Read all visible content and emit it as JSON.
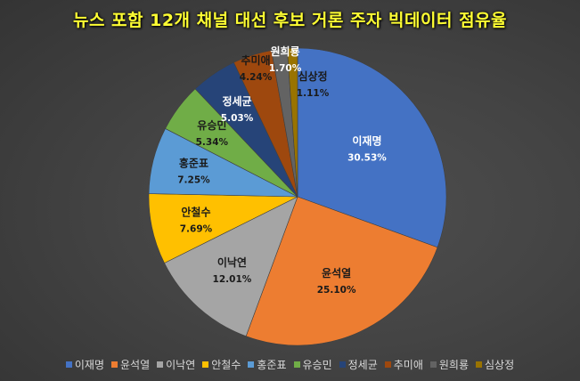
{
  "chart_data": {
    "type": "pie",
    "title": "뉴스 포함 12개 채널 대선 후보 거론 주자 빅데이터 점유율",
    "categories": [
      "이재명",
      "윤석열",
      "이낙연",
      "안철수",
      "홍준표",
      "유승민",
      "정세균",
      "추미애",
      "원희룡",
      "심상정"
    ],
    "values": [
      30.53,
      25.1,
      12.01,
      7.69,
      7.25,
      5.34,
      5.03,
      4.24,
      1.7,
      1.11
    ],
    "value_labels": [
      "30.53%",
      "25.10%",
      "12.01%",
      "7.69%",
      "7.25%",
      "5.34%",
      "5.03%",
      "4.24%",
      "1.70%",
      "1.11%"
    ],
    "colors": [
      "#4472c4",
      "#ed7d31",
      "#a5a5a5",
      "#ffc000",
      "#5b9bd5",
      "#70ad47",
      "#264478",
      "#9e480e",
      "#636363",
      "#997300"
    ],
    "label_colors": [
      "#ffffff",
      "#1a1a1a",
      "#1a1a1a",
      "#1a1a1a",
      "#1a1a1a",
      "#1a1a1a",
      "#ffffff",
      "#1a1a1a",
      "#ffffff",
      "#1a1a1a"
    ],
    "start_angle_deg": 0,
    "direction": "clockwise",
    "legend_position": "bottom"
  },
  "legend": {
    "items": [
      "이재명",
      "윤석열",
      "이낙연",
      "안철수",
      "홍준표",
      "유승민",
      "정세균",
      "추미애",
      "원희룡",
      "심상정"
    ]
  }
}
